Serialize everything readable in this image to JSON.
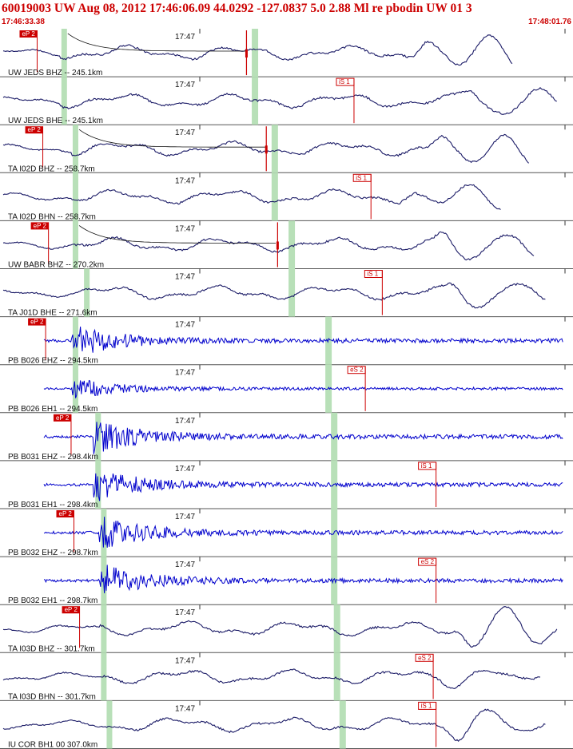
{
  "header": {
    "title": "60019003 UW Aug 08, 2012 17:46:06.09    44.0292 -127.0837  5.0 2.88 Ml re pbodin UW 01   3",
    "start_time": "17:46:33.38",
    "end_time": "17:48:01.76"
  },
  "colors": {
    "accent": "#cc0000",
    "broadband": "#1a1a66",
    "strong_motion": "#0000cc",
    "pick_window": "#b8e0b8"
  },
  "chart_data": {
    "type": "line",
    "tick_label": "17:47",
    "traces": [
      {
        "label": "UW JEDS BHZ -- 245.1km",
        "pick": "eP 2",
        "pick_pos": 0.06,
        "window": 0.445,
        "kind": "bb",
        "energy": 0.1,
        "amp": 0.9,
        "cursor": 0.43,
        "late": 0.72
      },
      {
        "label": "UW JEDS BHE -- 245.1km",
        "pick": "iS 1",
        "pick_pos": 0.62,
        "window": 0.445,
        "kind": "bb",
        "energy": 0.1,
        "amp": 0.6,
        "cursor": null,
        "late": 0.8
      },
      {
        "label": "TA I02D BHZ -- 258.7km",
        "pick": "eP 2",
        "pick_pos": 0.07,
        "window": 0.48,
        "kind": "bb",
        "energy": 0.12,
        "amp": 0.9,
        "cursor": 0.465,
        "late": 0.75
      },
      {
        "label": "TA I02D BHN -- 258.7km",
        "pick": "iS 1",
        "pick_pos": 0.65,
        "window": 0.48,
        "kind": "bb",
        "energy": 0.12,
        "amp": 0.5,
        "cursor": null,
        "late": 0.7
      },
      {
        "label": "UW BABR BHZ -- 270.2km",
        "pick": "eP 2",
        "pick_pos": 0.08,
        "window": 0.51,
        "kind": "bb",
        "energy": 0.12,
        "amp": 0.9,
        "cursor": 0.485,
        "late": 0.76
      },
      {
        "label": "TA J01D BHE -- 271.6km",
        "pick": "iS 1",
        "pick_pos": 0.67,
        "window": 0.51,
        "kind": "bb",
        "energy": 0.14,
        "amp": 0.7,
        "cursor": null,
        "late": 0.78
      },
      {
        "label": "PB B026 EHZ -- 294.5km",
        "pick": "eP 2",
        "pick_pos": 0.075,
        "window": 0.575,
        "kind": "sm",
        "energy": 0.12,
        "amp": 0.9,
        "cursor": null,
        "late": null
      },
      {
        "label": "PB B026 EH1 -- 294.5km",
        "pick": "eS 2",
        "pick_pos": 0.64,
        "window": 0.575,
        "kind": "sm",
        "energy": 0.12,
        "amp": 0.6,
        "cursor": null,
        "late": null
      },
      {
        "label": "PB B031 EHZ -- 298.4km",
        "pick": "eP 2",
        "pick_pos": 0.12,
        "window": 0.585,
        "kind": "sm",
        "energy": 0.16,
        "amp": 0.95,
        "cursor": null,
        "late": null
      },
      {
        "label": "PB B031 EH1 -- 298.4km",
        "pick": "iS 1",
        "pick_pos": 0.765,
        "window": 0.585,
        "kind": "sm",
        "energy": 0.16,
        "amp": 0.9,
        "cursor": null,
        "late": null
      },
      {
        "label": "PB B032 EHZ -- 298.7km",
        "pick": "eP 2",
        "pick_pos": 0.125,
        "window": 0.585,
        "kind": "sm",
        "energy": 0.17,
        "amp": 0.9,
        "cursor": null,
        "late": null
      },
      {
        "label": "PB B032 EH1 -- 298.7km",
        "pick": "eS 2",
        "pick_pos": 0.765,
        "window": 0.585,
        "kind": "sm",
        "energy": 0.17,
        "amp": 0.9,
        "cursor": null,
        "late": null
      },
      {
        "label": "TA I03D BHZ -- 301.7km",
        "pick": "eP 2",
        "pick_pos": 0.135,
        "window": 0.59,
        "kind": "bb",
        "energy": 0.17,
        "amp": 0.9,
        "cursor": null,
        "late": 0.8
      },
      {
        "label": "TA I03D BHN -- 301.7km",
        "pick": "eS 2",
        "pick_pos": 0.76,
        "window": 0.59,
        "kind": "bb",
        "energy": 0.17,
        "amp": 0.4,
        "cursor": null,
        "late": 0.77
      },
      {
        "label": "IU COR BH1 00 307.0km",
        "pick": "iS 1",
        "pick_pos": 0.765,
        "window": 0.6,
        "kind": "bb",
        "energy": 0.18,
        "amp": 0.7,
        "cursor": null,
        "late": 0.78
      }
    ]
  }
}
